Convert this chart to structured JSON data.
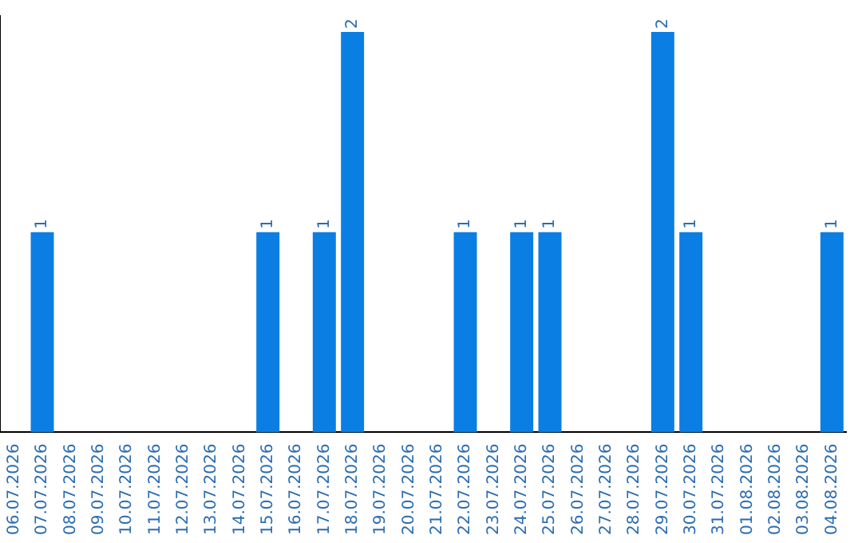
{
  "chart_data": {
    "type": "bar",
    "categories": [
      "06.07.2026",
      "07.07.2026",
      "08.07.2026",
      "09.07.2026",
      "10.07.2026",
      "11.07.2026",
      "12.07.2026",
      "13.07.2026",
      "14.07.2026",
      "15.07.2026",
      "16.07.2026",
      "17.07.2026",
      "18.07.2026",
      "19.07.2026",
      "20.07.2026",
      "21.07.2026",
      "22.07.2026",
      "23.07.2026",
      "24.07.2026",
      "25.07.2026",
      "26.07.2026",
      "27.07.2026",
      "28.07.2026",
      "29.07.2026",
      "30.07.2026",
      "31.07.2026",
      "01.08.2026",
      "02.08.2026",
      "03.08.2026",
      "04.08.2026"
    ],
    "values": [
      0,
      1,
      0,
      0,
      0,
      0,
      0,
      0,
      0,
      1,
      0,
      1,
      2,
      0,
      0,
      0,
      1,
      0,
      1,
      1,
      0,
      0,
      0,
      2,
      1,
      0,
      0,
      0,
      0,
      1
    ],
    "value_labels": [
      null,
      "1",
      null,
      null,
      null,
      null,
      null,
      null,
      null,
      "1",
      null,
      "1",
      "2",
      null,
      null,
      null,
      "1",
      null,
      "1",
      "1",
      null,
      null,
      null,
      "2",
      "1",
      null,
      null,
      null,
      null,
      "1"
    ],
    "color": "#0b7ee3",
    "ylim": [
      0,
      2.08
    ],
    "tick_labels": "x",
    "grid": false,
    "legend": false
  }
}
